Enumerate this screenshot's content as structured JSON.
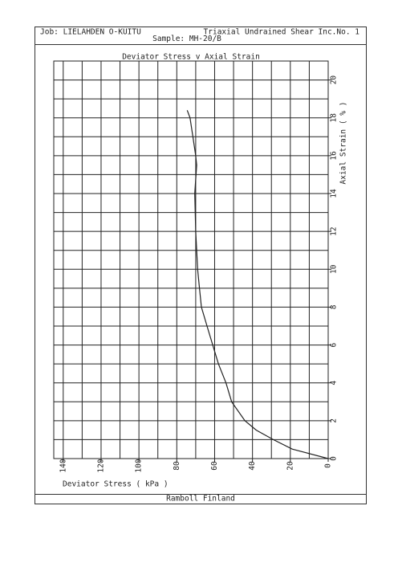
{
  "header": {
    "job": "Job: LIELAHDEN O-KUITU",
    "test": "Triaxial Undrained Shear Inc.No. 1",
    "sample": "Sample: MH-20/B"
  },
  "footer": "Ramboll Finland",
  "chart_data": {
    "type": "line",
    "title": "Deviator Stress v Axial Strain",
    "x_label": "Axial Strain ( % )",
    "y_label": "Deviator Stress ( kPa )",
    "xlim": [
      0,
      21
    ],
    "xticks": [
      0,
      2,
      4,
      6,
      8,
      10,
      12,
      14,
      16,
      18,
      20
    ],
    "x_minor_ticks": [
      1,
      3,
      5,
      7,
      9,
      11,
      13,
      15,
      17,
      19
    ],
    "ylim": [
      0,
      145
    ],
    "yticks": [
      0,
      20,
      40,
      60,
      80,
      100,
      120,
      140
    ],
    "y_minor_ticks": [
      10,
      30,
      50,
      70,
      90,
      110,
      130
    ],
    "grid": true,
    "color": "#222222",
    "x": [
      0,
      0.5,
      1,
      1.5,
      2,
      3,
      4,
      5,
      6,
      7,
      8,
      9,
      10,
      12,
      14,
      15.5,
      16,
      17,
      18,
      18.4
    ],
    "values": [
      0,
      19,
      29,
      38,
      44,
      51,
      54,
      58,
      61,
      64,
      67,
      68,
      69,
      70,
      70.5,
      69.5,
      70,
      71.5,
      73,
      74.5
    ]
  }
}
